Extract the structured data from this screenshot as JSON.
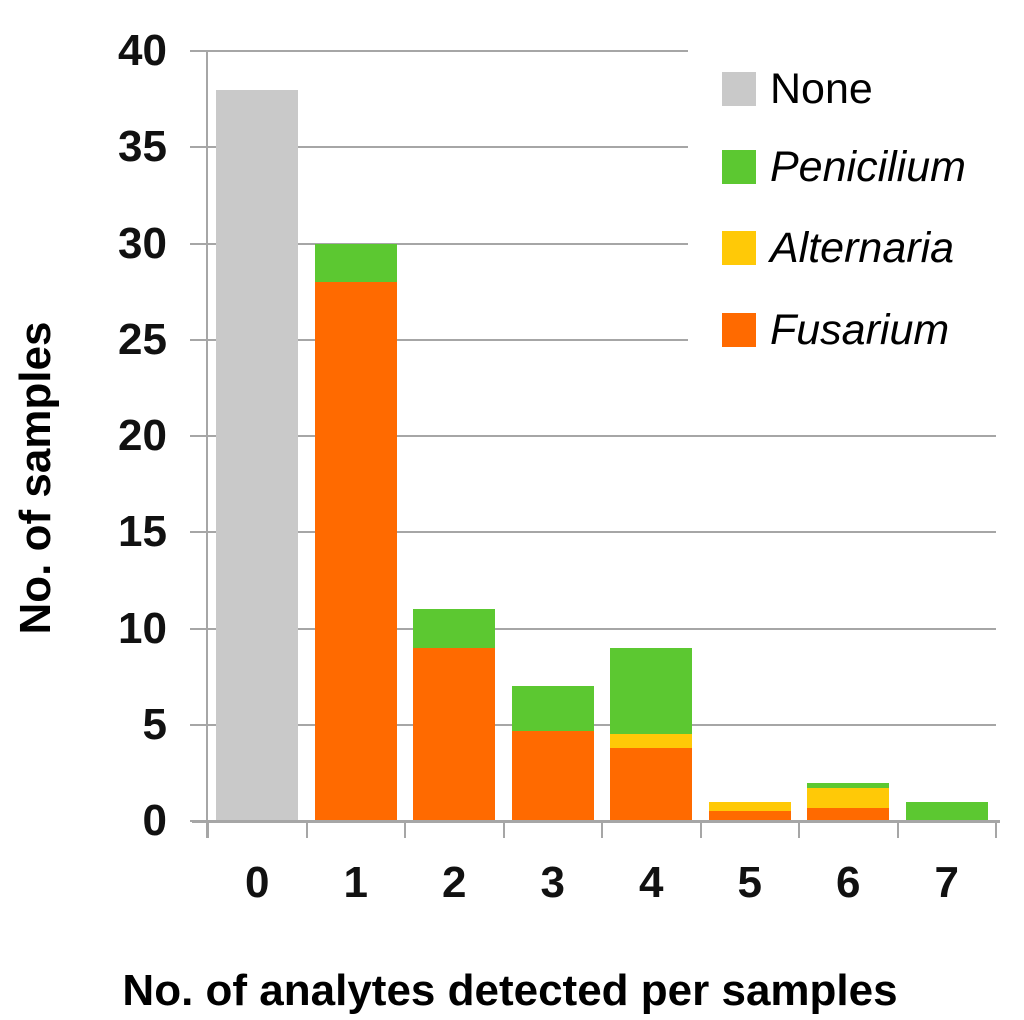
{
  "figure": {
    "y_axis_title": "No. of samples",
    "x_axis_title": "No. of analytes detected per samples"
  },
  "legend": {
    "items": [
      {
        "label": "None",
        "color": "#C9C9C9",
        "italic": false
      },
      {
        "label": "Penicilium",
        "color": "#5CC831",
        "italic": true
      },
      {
        "label": "Alternaria",
        "color": "#FFC907",
        "italic": true
      },
      {
        "label": "Fusarium",
        "color": "#FF6A00",
        "italic": true
      }
    ]
  },
  "chart_data": {
    "type": "bar",
    "stacked": true,
    "title": "",
    "xlabel": "No. of analytes detected per samples",
    "ylabel": "No. of samples",
    "categories": [
      "0",
      "1",
      "2",
      "3",
      "4",
      "5",
      "6",
      "7"
    ],
    "series": [
      {
        "name": "None",
        "color": "#C9C9C9",
        "values": [
          38,
          0,
          0,
          0,
          0,
          0,
          0,
          0
        ]
      },
      {
        "name": "Fusarium",
        "color": "#FF6A00",
        "values": [
          0,
          28,
          9,
          4.7,
          3.8,
          0.5,
          0.7,
          0
        ]
      },
      {
        "name": "Alternaria",
        "color": "#FFC907",
        "values": [
          0,
          0,
          0,
          0,
          0.7,
          0.5,
          1.0,
          0
        ]
      },
      {
        "name": "Penicilium",
        "color": "#5CC831",
        "values": [
          0,
          2,
          2,
          2.3,
          4.5,
          0,
          0.3,
          1
        ]
      }
    ],
    "bar_totals": [
      38,
      30,
      11,
      7,
      9,
      1,
      2,
      1
    ],
    "y_ticks": [
      0,
      5,
      10,
      15,
      20,
      25,
      30,
      35,
      40
    ],
    "ylim": [
      0,
      40
    ],
    "grid": true,
    "legend_position": "top-right"
  },
  "colors": {
    "gridline": "#A6A6A6",
    "axis": "#A6A6A6",
    "background": "#FFFFFF",
    "text": "#000000"
  }
}
